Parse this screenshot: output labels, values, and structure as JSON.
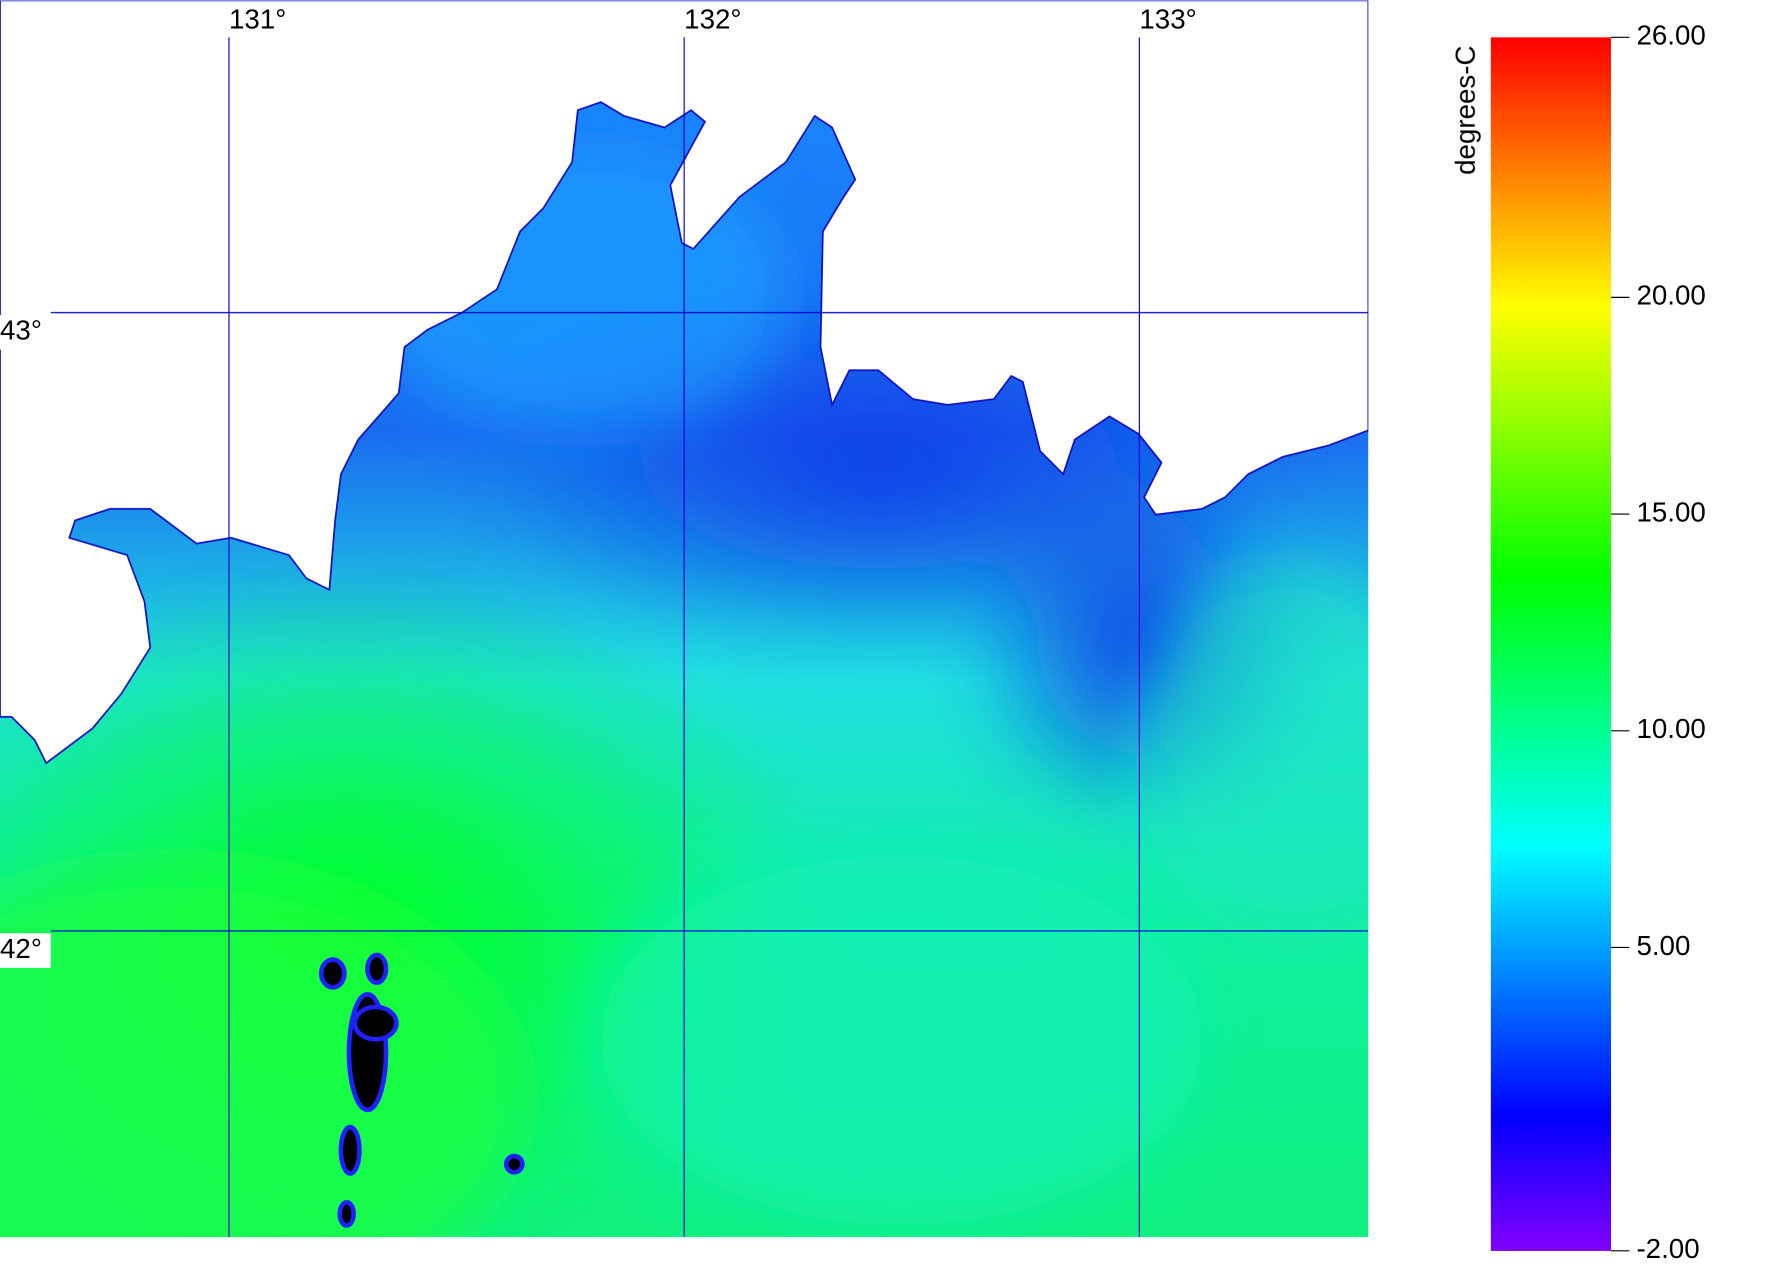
{
  "map": {
    "xlim": [
      130.497,
      133.503
    ],
    "ylim": [
      41.505,
      43.505
    ],
    "xticks": [
      {
        "value": 131,
        "label": "131°"
      },
      {
        "value": 132,
        "label": "132°"
      },
      {
        "value": 133,
        "label": "133°"
      }
    ],
    "yticks": [
      {
        "value": 43,
        "label": "43°"
      },
      {
        "value": 42,
        "label": "42°"
      }
    ],
    "grid_color": "#0000cc"
  },
  "colorbar": {
    "label": "degrees-C",
    "lim": [
      -2,
      26
    ],
    "ticks": [
      {
        "value": -2,
        "label": "-2.00"
      },
      {
        "value": 5,
        "label": "5.00"
      },
      {
        "value": 10,
        "label": "10.00"
      },
      {
        "value": 15,
        "label": "15.00"
      },
      {
        "value": 20,
        "label": "20.00"
      },
      {
        "value": 26,
        "label": "26.00"
      }
    ],
    "colors": [
      "#8000ff",
      "#0000ff",
      "#0080ff",
      "#00ffff",
      "#00ff80",
      "#00ff00",
      "#80ff00",
      "#ffff00",
      "#ff8000",
      "#ff0000"
    ]
  }
}
